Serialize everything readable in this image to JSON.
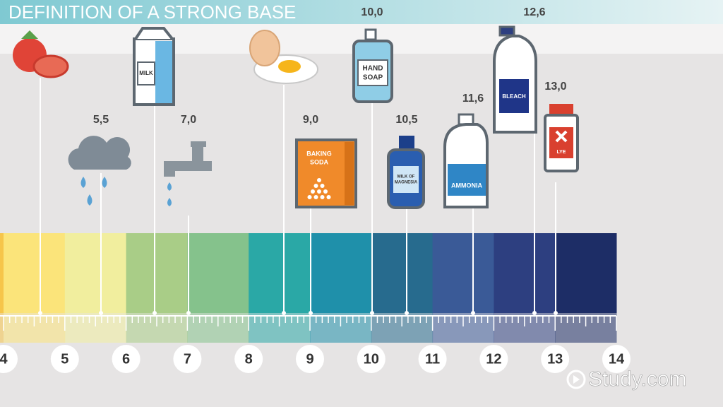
{
  "title": "DEFINITION OF A STRONG BASE",
  "unlabeled_items": [
    {
      "label": "MILK"
    }
  ],
  "markers": [
    {
      "ph": "5,5"
    },
    {
      "ph": "7,0"
    },
    {
      "ph": "9,0",
      "label": [
        "BAKING",
        "SODA"
      ]
    },
    {
      "ph": "10,0",
      "label": [
        "HAND",
        "SOAP"
      ]
    },
    {
      "ph": "10,5",
      "label": [
        "MILK OF",
        "MAGNESIA"
      ]
    },
    {
      "ph": "11,6",
      "label": "AMMONIA"
    },
    {
      "ph": "12,6",
      "label": "BLEACH"
    },
    {
      "ph": "13,0",
      "label": "LYE"
    }
  ],
  "scale": [
    4,
    5,
    6,
    7,
    8,
    9,
    10,
    11,
    12,
    13,
    14
  ],
  "watermark": "Study.com"
}
